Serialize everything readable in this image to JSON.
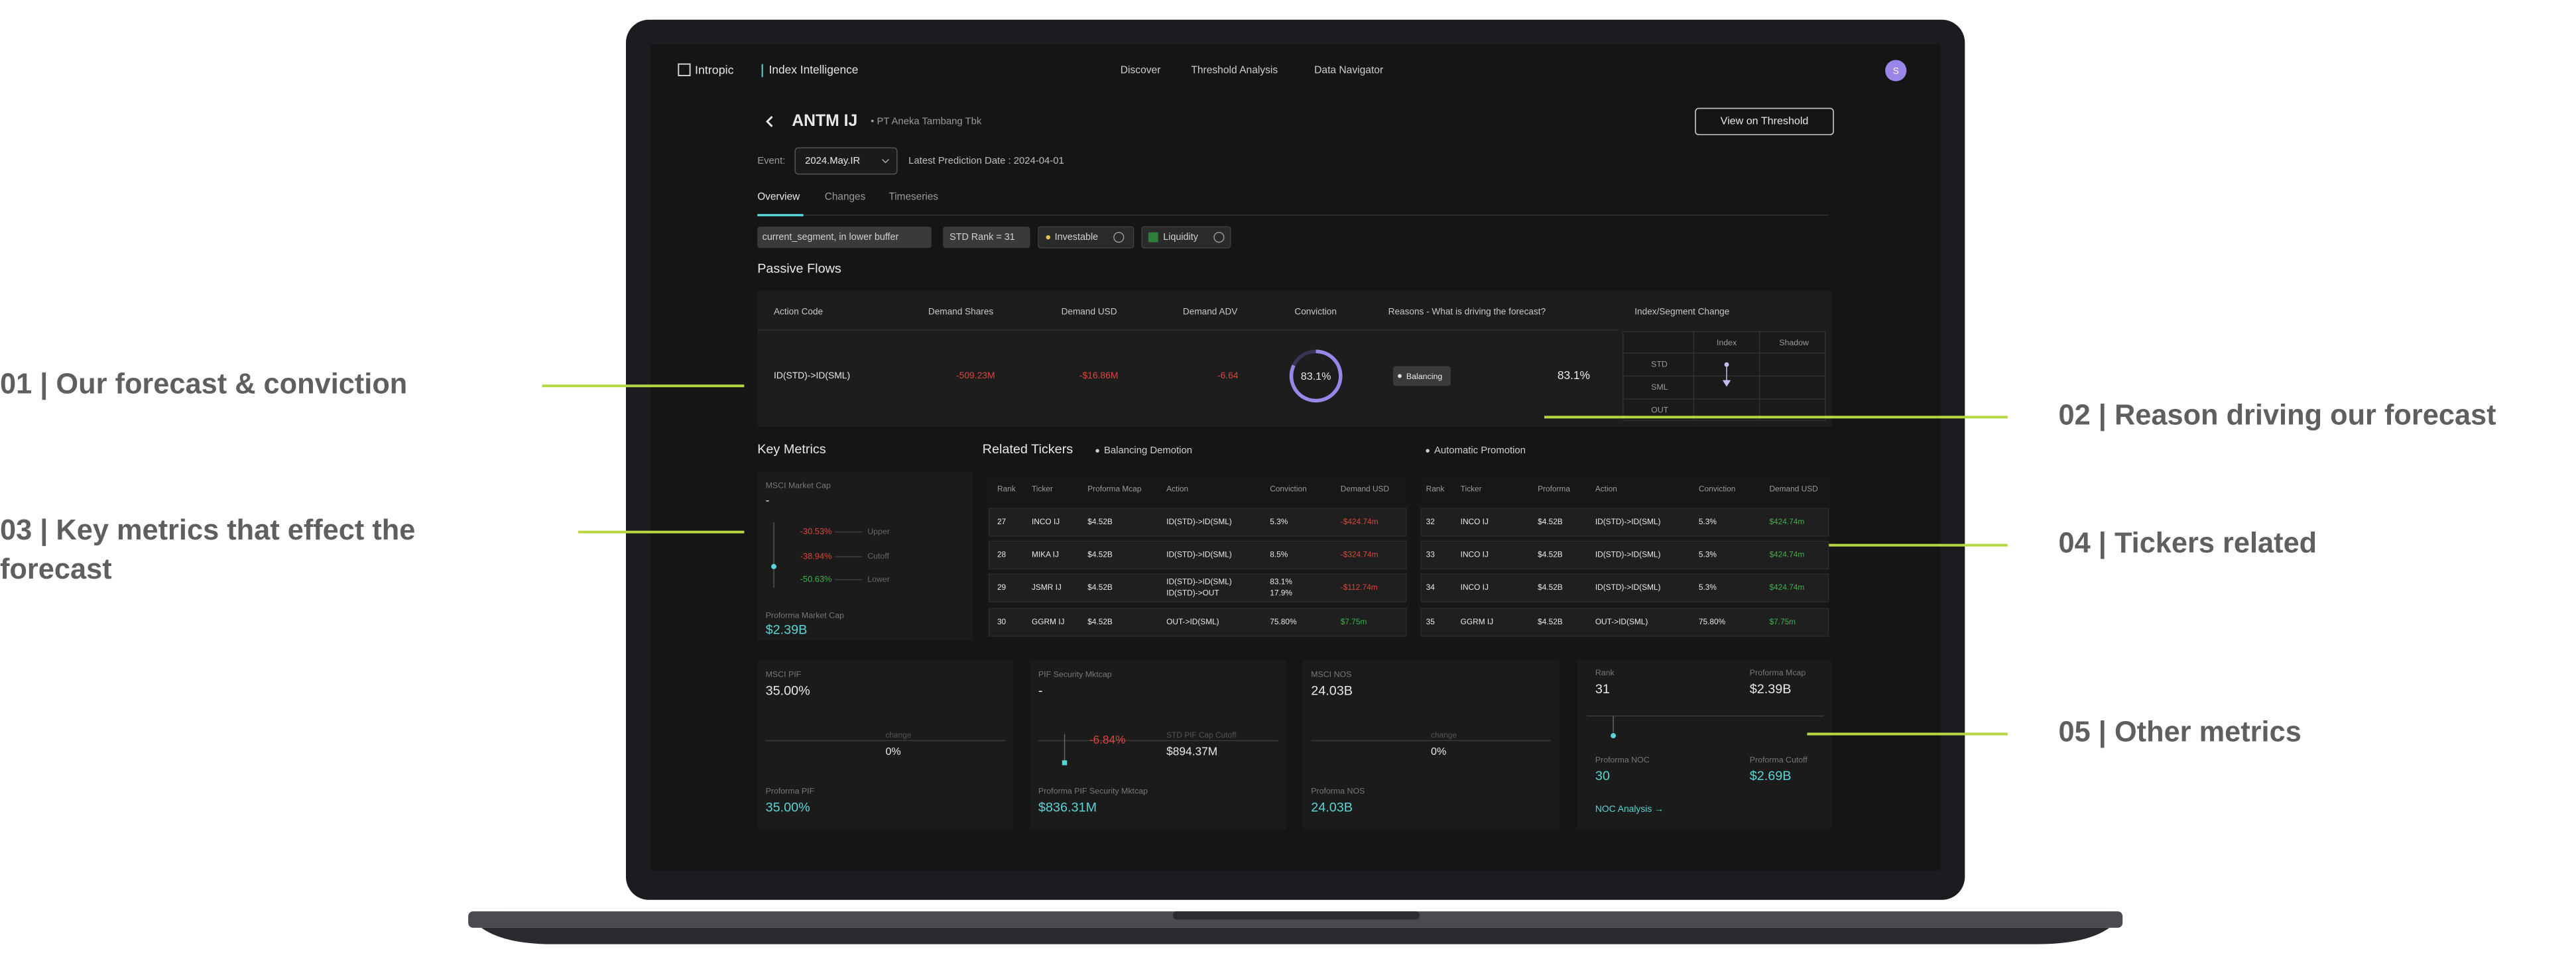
{
  "annotations": [
    {
      "text": [
        "01 | Our forecast & conviction"
      ]
    },
    {
      "text": [
        "02 | Reason driving our forecast"
      ]
    },
    {
      "text": [
        "03 | Key metrics that effect the",
        "forecast"
      ]
    },
    {
      "text": [
        "04 | Tickers related"
      ]
    },
    {
      "text": [
        "05 | Other metrics"
      ]
    }
  ],
  "nav": {
    "brand": "Intropic",
    "product": "Index Intelligence",
    "links": [
      "Discover",
      "Threshold Analysis",
      "Data Navigator"
    ],
    "avatar": "S"
  },
  "header": {
    "ticker": "ANTM IJ",
    "company": "• PT Aneka Tambang Tbk",
    "button": "View on Threshold",
    "event_label": "Event:",
    "event_value": "2024.May.IR",
    "prediction": "Latest Prediction Date : 2024-04-01"
  },
  "tabs": [
    "Overview",
    "Changes",
    "Timeseries"
  ],
  "tags": [
    "current_segment, in lower buffer",
    "STD Rank = 31",
    "Investable",
    "Liquidity"
  ],
  "passive_flows": {
    "title": "Passive Flows",
    "columns": [
      "Action Code",
      "Demand Shares",
      "Demand USD",
      "Demand ADV",
      "Conviction",
      "Reasons - What is driving the forecast?",
      "Index/Segment Change"
    ],
    "row": {
      "action": "ID(STD)->ID(SML)",
      "shares": "-509.23M",
      "usd": "-$16.86M",
      "adv": "-6.64",
      "conviction": "83.1%",
      "reason": "Balancing",
      "reason_pct": "83.1%"
    },
    "index_change": {
      "headers": [
        "Index",
        "Shadow"
      ],
      "rows": [
        "STD",
        "SML",
        "OUT"
      ]
    }
  },
  "key_metrics": {
    "title": "Key Metrics",
    "label": "MSCI Market Cap",
    "value": "-",
    "levels": [
      {
        "pct": "-30.53%",
        "label": "Upper"
      },
      {
        "pct": "-38.94%",
        "label": "Cutoff"
      },
      {
        "pct": "-50.63%",
        "label": "Lower"
      }
    ],
    "proforma_label": "Proforma Market Cap",
    "proforma_value": "$2.39B"
  },
  "related": {
    "title": "Related Tickers",
    "groups": [
      {
        "name": "Balancing Demotion",
        "columns": [
          "Rank",
          "Ticker",
          "Proforma Mcap",
          "Action",
          "Conviction",
          "Demand USD"
        ],
        "rows": [
          [
            "27",
            "INCO IJ",
            "$4.52B",
            "ID(STD)->ID(SML)",
            "5.3%",
            "-$424.74m"
          ],
          [
            "28",
            "MIKA IJ",
            "$4.52B",
            "ID(STD)->ID(SML)",
            "8.5%",
            "-$324.74m"
          ],
          [
            "29",
            "JSMR IJ",
            "$4.52B",
            [
              "ID(STD)->ID(SML)",
              "ID(STD)->OUT"
            ],
            [
              "83.1%",
              "17.9%"
            ],
            "-$112.74m"
          ],
          [
            "30",
            "GGRM IJ",
            "$4.52B",
            "OUT->ID(SML)",
            "75.80%",
            "$7.75m"
          ]
        ]
      },
      {
        "name": "Automatic Promotion",
        "columns": [
          "Rank",
          "Ticker",
          "Proforma",
          "Action",
          "Conviction",
          "Demand USD"
        ],
        "rows": [
          [
            "32",
            "INCO IJ",
            "$4.52B",
            "ID(STD)->ID(SML)",
            "5.3%",
            "$424.74m"
          ],
          [
            "33",
            "INCO IJ",
            "$4.52B",
            "ID(STD)->ID(SML)",
            "5.3%",
            "$424.74m"
          ],
          [
            "34",
            "INCO IJ",
            "$4.52B",
            "ID(STD)->ID(SML)",
            "5.3%",
            "$424.74m"
          ],
          [
            "35",
            "GGRM IJ",
            "$4.52B",
            "OUT->ID(SML)",
            "75.80%",
            "$7.75m"
          ]
        ]
      }
    ]
  },
  "cards": [
    {
      "label": "MSCI PIF",
      "value": "35.00%",
      "mid_label": "change",
      "mid_value": "0%",
      "proforma_label": "Proforma PIF",
      "proforma_value": "35.00%"
    },
    {
      "label": "PIF Security Mktcap",
      "value": "-",
      "delta": "-6.84%",
      "mid_label": "STD PIF Cap Cutoff",
      "mid_value": "$894.37M",
      "proforma_label": "Proforma PIF Security Mktcap",
      "proforma_value": "$836.31M"
    },
    {
      "label": "MSCI NOS",
      "value": "24.03B",
      "mid_label": "change",
      "mid_value": "0%",
      "proforma_label": "Proforma NOS",
      "proforma_value": "24.03B"
    }
  ],
  "other_metrics": {
    "rank_label": "Rank",
    "rank": "31",
    "mcap_label": "Proforma Mcap",
    "mcap": "$2.39B",
    "noc_label": "Proforma NOC",
    "noc": "30",
    "cutoff_label": "Proforma Cutoff",
    "cutoff": "$2.69B",
    "link": "NOC Analysis →"
  }
}
